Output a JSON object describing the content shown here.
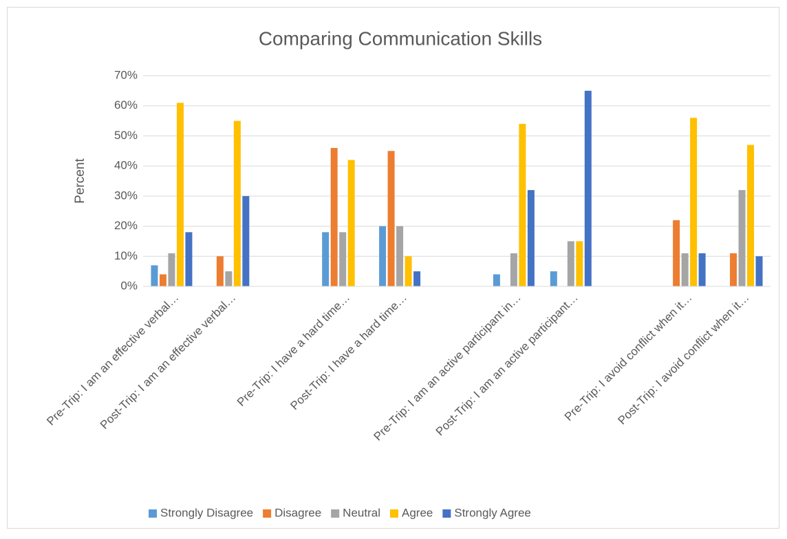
{
  "chart_data": {
    "type": "bar",
    "title": "Comparing Communication Skills",
    "y_label": "Percent",
    "categories": [
      "Pre-Trip: I am an effective verbal…",
      "Post-Trip: I am an effective verbal…",
      null,
      "Pre-Trip: I have a hard time…",
      "Post-Trip: I have a hard time…",
      null,
      "Pre-Trip: I am an active participant in…",
      "Post-Trip: I am an active participant…",
      null,
      "Pre-Trip: I avoid conflict when it…",
      "Post-Trip: I avoid conflict when it…"
    ],
    "series": [
      {
        "name": "Strongly Disagree",
        "color": "#5b9bd5",
        "values": [
          7,
          0,
          null,
          18,
          20,
          null,
          4,
          5,
          null,
          0,
          0
        ]
      },
      {
        "name": "Disagree",
        "color": "#ed7d31",
        "values": [
          4,
          10,
          null,
          46,
          45,
          null,
          0,
          0,
          null,
          22,
          11
        ]
      },
      {
        "name": "Neutral",
        "color": "#a5a5a5",
        "values": [
          11,
          5,
          null,
          18,
          20,
          null,
          11,
          15,
          null,
          11,
          32
        ]
      },
      {
        "name": "Agree",
        "color": "#ffc000",
        "values": [
          61,
          55,
          null,
          42,
          10,
          null,
          54,
          15,
          null,
          56,
          47
        ]
      },
      {
        "name": "Strongly Agree",
        "color": "#4472c4",
        "values": [
          18,
          30,
          null,
          0,
          5,
          null,
          32,
          65,
          null,
          11,
          10
        ]
      }
    ],
    "ylim": [
      0,
      70
    ],
    "yticks": [
      {
        "value": 0,
        "label": "0%"
      },
      {
        "value": 10,
        "label": "10%"
      },
      {
        "value": 20,
        "label": "20%"
      },
      {
        "value": 30,
        "label": "30%"
      },
      {
        "value": 40,
        "label": "40%"
      },
      {
        "value": 50,
        "label": "50%"
      },
      {
        "value": 60,
        "label": "60%"
      },
      {
        "value": 70,
        "label": "70%"
      }
    ],
    "grid": true,
    "legend": "bottom"
  }
}
